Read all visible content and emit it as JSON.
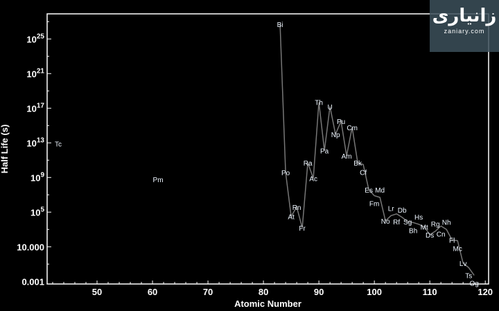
{
  "chart_data": {
    "type": "line",
    "title": "",
    "xlabel": "Atomic Number",
    "ylabel": "Half Life (s)",
    "xlim": [
      41,
      120.6
    ],
    "ylim_log10": [
      -3.3,
      27.9
    ],
    "y_scale": "log",
    "grid": false,
    "x_ticks": [
      50,
      60,
      70,
      80,
      90,
      100,
      110,
      120
    ],
    "y_ticks": [
      {
        "log10": 25,
        "base": "10",
        "exp": "25"
      },
      {
        "log10": 21,
        "base": "10",
        "exp": "21"
      },
      {
        "log10": 17,
        "base": "10",
        "exp": "17"
      },
      {
        "log10": 13,
        "base": "10",
        "exp": "13"
      },
      {
        "log10": 9,
        "base": "10",
        "exp": "9"
      },
      {
        "log10": 5,
        "base": "10",
        "exp": "5"
      },
      {
        "log10": 1,
        "base": "10.000",
        "exp": ""
      },
      {
        "log10": -3,
        "base": "0.001",
        "exp": ""
      }
    ],
    "line_color": "#777777",
    "label_color": "#eef6ff",
    "isolated_points": [
      {
        "symbol": "Tc",
        "z": 43,
        "log10_half_life": 12.9
      },
      {
        "symbol": "Pm",
        "z": 61,
        "log10_half_life": 8.8
      }
    ],
    "series_points": [
      {
        "symbol": "Bi",
        "z": 83,
        "log10_half_life": 26.7
      },
      {
        "symbol": "Po",
        "z": 84,
        "log10_half_life": 9.6
      },
      {
        "symbol": "At",
        "z": 85,
        "log10_half_life": 4.5
      },
      {
        "symbol": "Rn",
        "z": 86,
        "log10_half_life": 5.6
      },
      {
        "symbol": "Fr",
        "z": 87,
        "log10_half_life": 3.2
      },
      {
        "symbol": "Ra",
        "z": 88,
        "log10_half_life": 10.7
      },
      {
        "symbol": "Ac",
        "z": 89,
        "log10_half_life": 8.9
      },
      {
        "symbol": "Th",
        "z": 90,
        "log10_half_life": 17.7
      },
      {
        "symbol": "Pa",
        "z": 91,
        "log10_half_life": 12.1
      },
      {
        "symbol": "U",
        "z": 92,
        "log10_half_life": 17.2
      },
      {
        "symbol": "Np",
        "z": 93,
        "log10_half_life": 14.0
      },
      {
        "symbol": "Pu",
        "z": 94,
        "log10_half_life": 15.5
      },
      {
        "symbol": "Am",
        "z": 95,
        "log10_half_life": 11.5
      },
      {
        "symbol": "Cm",
        "z": 96,
        "log10_half_life": 14.8
      },
      {
        "symbol": "Bk",
        "z": 97,
        "log10_half_life": 10.7
      },
      {
        "symbol": "Cf",
        "z": 98,
        "log10_half_life": 10.5
      },
      {
        "symbol": "Es",
        "z": 99,
        "log10_half_life": 7.6
      },
      {
        "symbol": "Fm",
        "z": 100,
        "log10_half_life": 6.9
      },
      {
        "symbol": "Md",
        "z": 101,
        "log10_half_life": 6.7
      },
      {
        "symbol": "No",
        "z": 102,
        "log10_half_life": 4.0
      },
      {
        "symbol": "Lr",
        "z": 103,
        "log10_half_life": 4.6
      },
      {
        "symbol": "Rf",
        "z": 104,
        "log10_half_life": 4.8
      },
      {
        "symbol": "Db",
        "z": 105,
        "log10_half_life": 4.4
      },
      {
        "symbol": "Sg",
        "z": 106,
        "log10_half_life": 3.9
      },
      {
        "symbol": "Bh",
        "z": 107,
        "log10_half_life": 3.8
      },
      {
        "symbol": "Hs",
        "z": 108,
        "log10_half_life": 3.6
      },
      {
        "symbol": "Mt",
        "z": 109,
        "log10_half_life": 3.3
      },
      {
        "symbol": "Ds",
        "z": 110,
        "log10_half_life": 2.4
      },
      {
        "symbol": "Rg",
        "z": 111,
        "log10_half_life": 2.8
      },
      {
        "symbol": "Cn",
        "z": 112,
        "log10_half_life": 3.4
      },
      {
        "symbol": "Nh",
        "z": 113,
        "log10_half_life": 3.0
      },
      {
        "symbol": "Fl",
        "z": 114,
        "log10_half_life": 1.8
      },
      {
        "symbol": "Mc",
        "z": 115,
        "log10_half_life": 1.7
      },
      {
        "symbol": "Lv",
        "z": 116,
        "log10_half_life": -0.9
      },
      {
        "symbol": "Ts",
        "z": 117,
        "log10_half_life": -1.4
      },
      {
        "symbol": "Og",
        "z": 118,
        "log10_half_life": -2.3
      }
    ]
  },
  "watermark": {
    "logo_text": "زانیاری",
    "site": "zaniary.com"
  }
}
